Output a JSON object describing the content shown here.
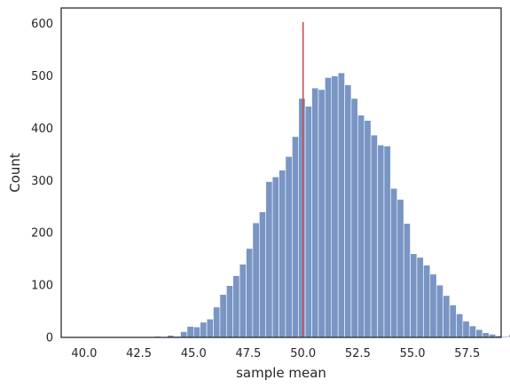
{
  "chart_data": {
    "type": "bar",
    "title": "",
    "xlabel": "sample mean",
    "ylabel": "Count",
    "xlim": [
      38.95,
      59.05
    ],
    "ylim": [
      0,
      630
    ],
    "x_ticks": [
      "40.0",
      "42.5",
      "45.0",
      "47.5",
      "50.0",
      "52.5",
      "55.0",
      "57.5"
    ],
    "x_tick_values": [
      40.0,
      42.5,
      45.0,
      47.5,
      50.0,
      52.5,
      55.0,
      57.5
    ],
    "y_ticks": [
      "0",
      "100",
      "200",
      "300",
      "400",
      "500",
      "600"
    ],
    "y_tick_values": [
      0,
      100,
      200,
      300,
      400,
      500,
      600
    ],
    "grid": false,
    "bin_start": 39.9,
    "bin_width": 0.3,
    "values": [
      1,
      0,
      0,
      0,
      0,
      0,
      0,
      0,
      0,
      0,
      0,
      2,
      0,
      4,
      2,
      11,
      21,
      20,
      29,
      35,
      58,
      82,
      99,
      118,
      140,
      170,
      219,
      240,
      298,
      307,
      320,
      346,
      384,
      457,
      442,
      477,
      474,
      497,
      500,
      506,
      483,
      457,
      425,
      415,
      387,
      368,
      366,
      285,
      264,
      218,
      160,
      153,
      138,
      121,
      100,
      80,
      62,
      45,
      31,
      22,
      15,
      9,
      6,
      3,
      2,
      5,
      6
    ],
    "reference_line": {
      "x": 50.0,
      "y_top": 603,
      "color": "#c44e52"
    },
    "bar_color": "#4c72b0"
  }
}
